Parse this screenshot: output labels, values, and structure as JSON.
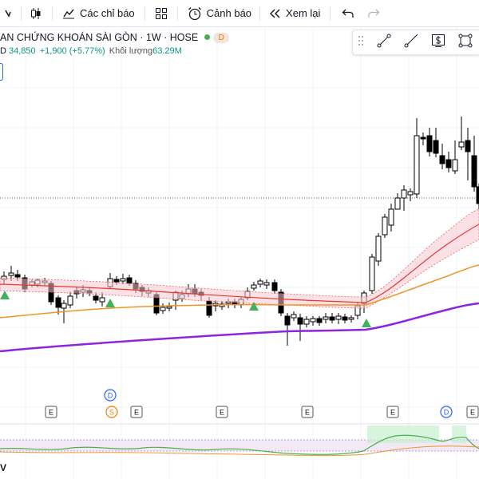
{
  "toolbar": {
    "indicators_label": "Các chỉ báo",
    "alerts_label": "Cảnh báo",
    "replay_label": "Xem lại"
  },
  "legend": {
    "title": "AN CHỨNG KHOÁN SÀI GÒN · 1W · HOSE",
    "badge": "D",
    "price_prefix": "D",
    "close": "34,850",
    "change": "+1,900 (+5.77%)",
    "volume_label": "Khối lượng",
    "volume": "63.29M"
  },
  "colors": {
    "up": "#ffffff",
    "down": "#000000",
    "ema_fast": "#e53935",
    "ema_mid": "#f0952a",
    "ema_slow": "#8e24df",
    "band": "#f7c9cf",
    "rsi": "#4caf50",
    "signal": "#43b05c",
    "event_e": "#555555",
    "event_d": "#2962ff",
    "event_s": "#f57c00"
  },
  "events": [
    {
      "type": "E",
      "label": "E"
    },
    {
      "type": "S",
      "label": "S"
    },
    {
      "type": "D",
      "label": "D"
    },
    {
      "type": "E",
      "label": "E"
    },
    {
      "type": "E",
      "label": "E"
    },
    {
      "type": "E",
      "label": "E"
    },
    {
      "type": "E",
      "label": "E"
    },
    {
      "type": "D",
      "label": "D"
    },
    {
      "type": "E",
      "label": "E"
    }
  ],
  "bottom_label": "V",
  "draw_tools": [
    "drag-handle-icon",
    "trend-line-icon",
    "ray-line-icon",
    "price-label-icon",
    "rectangle-icon",
    "more-tools-icon"
  ]
}
